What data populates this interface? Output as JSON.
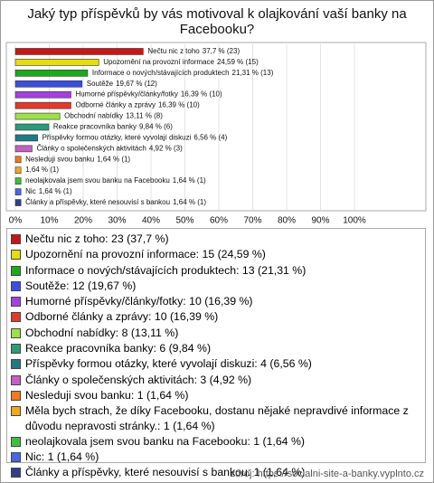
{
  "chart_data": {
    "type": "bar",
    "orientation": "horizontal",
    "title": "Jaký typ příspěvků by vás motivoval k olajkování vaší banky na Facebooku?",
    "categories": [
      "Nečtu nic z toho",
      "Upozornění na provozní informace",
      "Informace o nových/stávajících produktech",
      "Soutěže",
      "Humorné příspěvky/články/fotky",
      "Odborné články a zprávy",
      "Obchodní nabídky",
      "Reakce pracovníka banky",
      "Příspěvky formou otázky, které vyvolají diskuzi",
      "Články o společenských aktivitách",
      "Nesleduji svou banku",
      null,
      "neolajkovala jsem svou banku na Facebooku",
      "Nic",
      "Články a příspěvky, které nesouvisí s bankou"
    ],
    "values": [
      37.7,
      24.59,
      21.31,
      19.67,
      16.39,
      16.39,
      13.11,
      9.84,
      6.56,
      4.92,
      1.64,
      1.64,
      1.64,
      1.64,
      1.64
    ],
    "value_labels": [
      "37,7 % (23)",
      "24,59 % (15)",
      "21,31 % (13)",
      "19,67 % (12)",
      "16,39 % (10)",
      "16,39 % (10)",
      "13,11 % (8)",
      "9,84 % (6)",
      "6,56 % (4)",
      "4,92 % (3)",
      "1,64 % (1)",
      "1,64 % (1)",
      "1,64 % (1)",
      "1,64 % (1)",
      "1,64 % (1)"
    ],
    "colors": [
      "#c41818",
      "#e6dc10",
      "#1ea81e",
      "#3a4fe0",
      "#a440e0",
      "#e03a2a",
      "#9fe04a",
      "#2f9a78",
      "#1f7a86",
      "#c45ec4",
      "#f07a1e",
      "#f0a81e",
      "#3cc03c",
      "#4a64e6",
      "#2f3f8a"
    ],
    "legend": [
      "Nečtu nic z toho: 23 (37,7 %)",
      "Upozornění na provozní informace: 15 (24,59 %)",
      "Informace o nových/stávajících produktech: 13 (21,31 %)",
      "Soutěže: 12 (19,67 %)",
      "Humorné příspěvky/články/fotky: 10 (16,39 %)",
      "Odborné články a zprávy: 10 (16,39 %)",
      "Obchodní nabídky: 8 (13,11 %)",
      "Reakce pracovníka banky: 6 (9,84 %)",
      "Příspěvky formou otázky, které vyvolají diskuzi: 4 (6,56 %)",
      "Články o společenských aktivitách: 3 (4,92 %)",
      "Nesleduji svou banku: 1 (1,64 %)",
      "Měla bych strach, že díky Facebooku, dostanu nějaké nepravdivé informace z důvodu nepravosti stránky.: 1 (1,64 %)",
      "neolajkovala jsem svou banku na Facebooku: 1 (1,64 %)",
      "Nic: 1 (1,64 %)",
      "Články a příspěvky, které nesouvisí s bankou: 1 (1,64 %)"
    ],
    "xlim": [
      0,
      100
    ],
    "xticks": [
      {
        "value": 0,
        "label": "0%"
      },
      {
        "value": 10,
        "label": "10%"
      },
      {
        "value": 20,
        "label": "20%"
      },
      {
        "value": 30,
        "label": "30%"
      },
      {
        "value": 40,
        "label": "40%"
      },
      {
        "value": 50,
        "label": "50%"
      },
      {
        "value": 60,
        "label": "60%"
      },
      {
        "value": 70,
        "label": "70%"
      },
      {
        "value": 80,
        "label": "80%"
      },
      {
        "value": 90,
        "label": "90%"
      },
      {
        "value": 100,
        "label": "100%"
      }
    ],
    "grid": true,
    "source": "zdroj: https://socialni-site-a-banky.vyplnto.cz"
  }
}
